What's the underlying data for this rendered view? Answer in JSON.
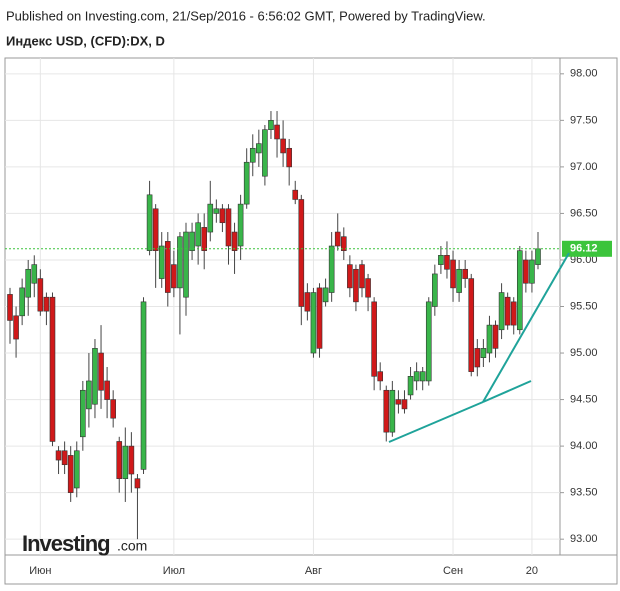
{
  "header": {
    "published": "Published on Investing.com, 21/Sep/2016 - 6:56:02 GMT, Powered by TradingView.",
    "symbol": "Индекс USD, (CFD):DX, D"
  },
  "logo": {
    "brand": "Investing",
    "suffix": ".com"
  },
  "chart_data": {
    "type": "candlestick",
    "categories": [
      null,
      null,
      null,
      null,
      null,
      "Июн",
      null,
      null,
      null,
      null,
      null,
      null,
      null,
      null,
      null,
      null,
      null,
      null,
      null,
      null,
      null,
      null,
      null,
      null,
      null,
      null,
      null,
      "Июл",
      null,
      null,
      null,
      null,
      null,
      null,
      null,
      null,
      null,
      null,
      null,
      null,
      null,
      null,
      null,
      null,
      null,
      null,
      null,
      null,
      null,
      null,
      "Авг",
      null,
      null,
      null,
      null,
      null,
      null,
      null,
      null,
      null,
      null,
      null,
      null,
      null,
      null,
      null,
      null,
      null,
      null,
      null,
      null,
      null,
      null,
      "Сен",
      null,
      null,
      null,
      null,
      null,
      null,
      null,
      null,
      null,
      null,
      null,
      null,
      "20",
      null
    ],
    "series": [
      {
        "up_color": "#39b54a",
        "down_color": "#d0191a",
        "open": [
          95.63,
          95.4,
          95.4,
          95.6,
          95.75,
          95.8,
          95.6,
          95.6,
          93.95,
          93.95,
          93.9,
          93.55,
          94.1,
          94.4,
          94.45,
          95.0,
          94.7,
          94.5,
          94.05,
          93.65,
          94.0,
          93.65,
          93.75,
          96.1,
          96.55,
          95.8,
          96.2,
          95.95,
          95.7,
          95.6,
          96.1,
          96.15,
          96.35,
          96.3,
          96.5,
          96.55,
          96.55,
          96.3,
          96.15,
          96.6,
          97.05,
          97.15,
          96.9,
          97.4,
          97.45,
          97.3,
          97.2,
          96.75,
          96.65,
          95.65,
          95.0,
          95.7,
          95.55,
          95.65,
          96.3,
          96.25,
          95.95,
          95.9,
          95.95,
          95.8,
          95.55,
          94.8,
          94.6,
          94.15,
          94.5,
          94.5,
          94.55,
          94.7,
          94.7,
          94.7,
          95.5,
          95.95,
          96.05,
          96.0,
          95.65,
          95.9,
          95.8,
          95.05,
          94.95,
          95.0,
          95.3,
          95.25,
          95.6,
          95.55,
          95.25,
          96.0,
          95.75,
          95.95
        ],
        "high": [
          95.7,
          95.5,
          95.8,
          96.0,
          96.05,
          95.9,
          95.65,
          95.65,
          94.0,
          94.05,
          94.0,
          94.05,
          94.7,
          95.0,
          95.15,
          95.3,
          94.85,
          94.6,
          94.1,
          94.2,
          94.15,
          93.7,
          95.6,
          96.85,
          96.6,
          96.3,
          96.3,
          96.1,
          96.3,
          96.4,
          96.4,
          96.5,
          96.5,
          96.85,
          96.65,
          96.6,
          96.6,
          96.4,
          96.7,
          97.2,
          97.35,
          97.4,
          97.45,
          97.6,
          97.6,
          97.5,
          97.3,
          96.85,
          96.7,
          95.75,
          95.7,
          95.75,
          95.8,
          96.3,
          96.5,
          96.35,
          96.05,
          95.95,
          96.0,
          95.85,
          95.6,
          94.9,
          94.65,
          94.7,
          94.6,
          94.6,
          94.85,
          94.9,
          94.85,
          95.6,
          95.95,
          96.15,
          96.2,
          96.1,
          96.0,
          96.0,
          95.85,
          95.15,
          95.15,
          95.4,
          95.35,
          95.75,
          95.65,
          95.6,
          96.15,
          96.1,
          96.1,
          96.3
        ],
        "low": [
          95.1,
          94.95,
          95.3,
          95.4,
          95.6,
          95.4,
          95.3,
          94.0,
          93.7,
          93.7,
          93.4,
          93.45,
          93.95,
          94.2,
          94.3,
          94.4,
          94.3,
          94.2,
          93.5,
          93.4,
          93.5,
          93.0,
          93.7,
          96.05,
          95.7,
          95.7,
          95.5,
          95.6,
          95.2,
          95.4,
          96.0,
          95.95,
          95.9,
          96.2,
          96.4,
          96.3,
          95.95,
          95.85,
          96.0,
          96.55,
          96.9,
          97.0,
          96.8,
          97.3,
          97.1,
          97.0,
          96.8,
          96.6,
          95.3,
          95.35,
          94.95,
          94.95,
          95.5,
          95.55,
          96.1,
          96.0,
          95.6,
          95.45,
          95.6,
          95.45,
          94.6,
          94.6,
          94.05,
          94.1,
          94.35,
          94.35,
          94.5,
          94.6,
          94.6,
          94.65,
          95.4,
          95.85,
          95.8,
          95.55,
          95.55,
          95.7,
          94.75,
          94.75,
          94.85,
          94.9,
          94.95,
          95.15,
          95.25,
          95.2,
          95.2,
          95.65,
          95.65,
          95.9
        ],
        "close": [
          95.35,
          95.15,
          95.7,
          95.9,
          95.95,
          95.45,
          95.45,
          94.05,
          93.85,
          93.8,
          93.5,
          93.95,
          94.6,
          94.7,
          95.05,
          94.6,
          94.5,
          94.3,
          93.65,
          94.0,
          93.7,
          93.55,
          95.55,
          96.7,
          96.1,
          96.15,
          95.65,
          95.7,
          96.25,
          96.3,
          96.3,
          96.4,
          96.1,
          96.6,
          96.55,
          96.4,
          96.15,
          96.1,
          96.6,
          97.05,
          97.2,
          97.25,
          97.4,
          97.5,
          97.3,
          97.15,
          97.0,
          96.65,
          95.5,
          95.45,
          95.65,
          95.05,
          95.7,
          96.15,
          96.15,
          96.1,
          95.7,
          95.55,
          95.7,
          95.6,
          94.75,
          94.7,
          94.15,
          94.6,
          94.45,
          94.4,
          94.75,
          94.8,
          94.8,
          95.55,
          95.85,
          96.05,
          95.9,
          95.7,
          95.9,
          95.8,
          94.8,
          94.85,
          95.05,
          95.3,
          95.05,
          95.65,
          95.3,
          95.3,
          96.1,
          95.75,
          96.0,
          96.12
        ]
      }
    ],
    "ylim": [
      92.83,
      98.17
    ],
    "yticks": [
      {
        "value": 93,
        "label": "93.00"
      },
      {
        "value": 93.5,
        "label": "93.50"
      },
      {
        "value": 94,
        "label": "94.00"
      },
      {
        "value": 94.5,
        "label": "94.50"
      },
      {
        "value": 95,
        "label": "95.00"
      },
      {
        "value": 95.5,
        "label": "95.50"
      },
      {
        "value": 96,
        "label": "96.00"
      },
      {
        "value": 96.5,
        "label": "96.50"
      },
      {
        "value": 97,
        "label": "97.00"
      },
      {
        "value": 97.5,
        "label": "97.50"
      },
      {
        "value": 98,
        "label": "98.00"
      }
    ],
    "last_price": {
      "value": 96.12,
      "label": "96.12"
    },
    "grid": true
  }
}
